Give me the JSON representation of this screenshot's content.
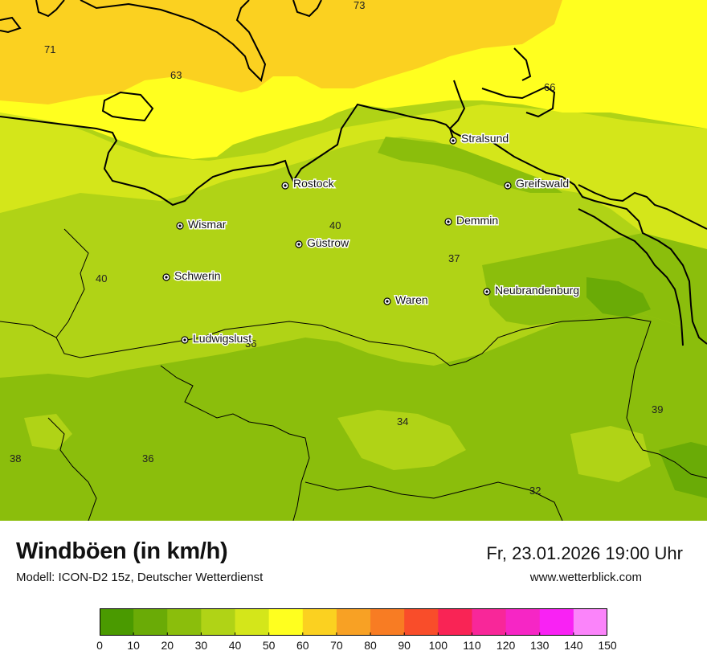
{
  "title": "Windböen (in km/h)",
  "subtitle": "Modell: ICON-D2 15z, Deutscher Wetterdienst",
  "datetime": "Fr, 23.01.2026 19:00 Uhr",
  "website": "www.wetterblick.com",
  "legend": {
    "ticks": [
      "0",
      "10",
      "20",
      "30",
      "40",
      "50",
      "60",
      "70",
      "80",
      "90",
      "100",
      "110",
      "120",
      "130",
      "140",
      "150"
    ],
    "colors": [
      "#4a9a00",
      "#6aab06",
      "#8bbe0c",
      "#b0d316",
      "#d4e61a",
      "#ffff1f",
      "#fbd120",
      "#f8a124",
      "#f87c23",
      "#f94d2a",
      "#f92455",
      "#f82799",
      "#f626c5",
      "#f922f4",
      "#fb84fa"
    ]
  },
  "cities": [
    "Stralsund",
    "Rostock",
    "Greifswald",
    "Wismar",
    "Demmin",
    "Güstrow",
    "Schwerin",
    "Neubrandenburg",
    "Waren",
    "Ludwigslust"
  ],
  "values": [
    "73",
    "71",
    "63",
    "66",
    "40",
    "37",
    "40",
    "34",
    "39",
    "38",
    "36",
    "32",
    "36"
  ]
}
